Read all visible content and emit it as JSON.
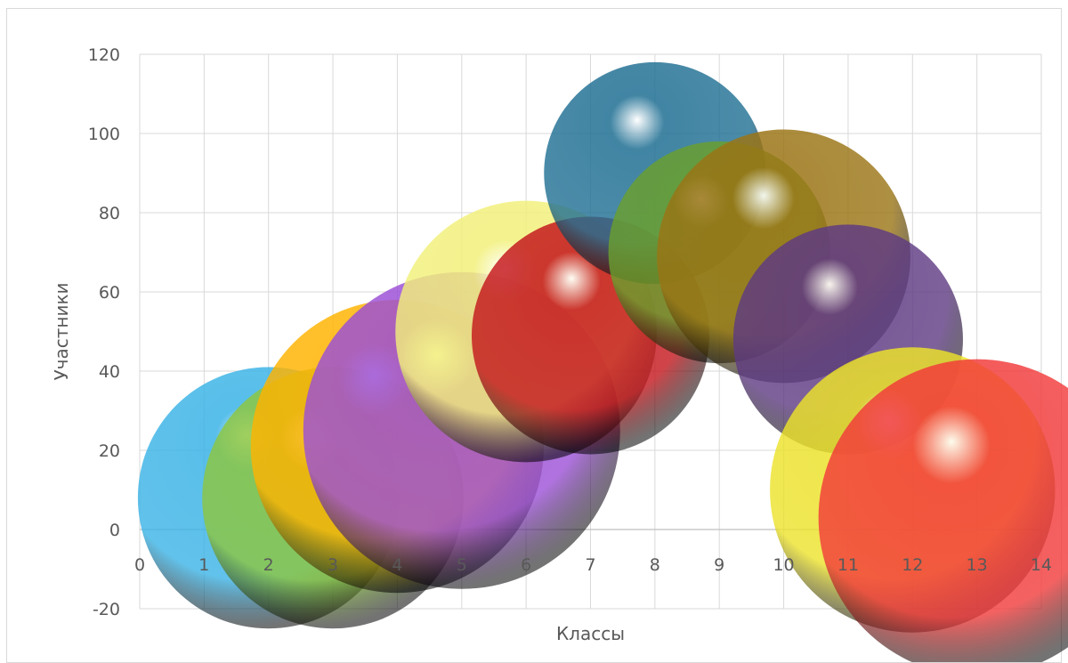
{
  "chart_data": {
    "type": "bubble",
    "title": "",
    "xlabel": "Классы",
    "ylabel": "Участники",
    "xlim": [
      0,
      14
    ],
    "ylim": [
      -20,
      120
    ],
    "xticks": [
      0,
      1,
      2,
      3,
      4,
      5,
      6,
      7,
      8,
      9,
      10,
      11,
      12,
      13,
      14
    ],
    "yticks": [
      -20,
      0,
      20,
      40,
      60,
      80,
      100,
      120
    ],
    "grid": true,
    "points": [
      {
        "x": 2,
        "y": 8,
        "size": 33,
        "color": "#3ab3e6"
      },
      {
        "x": 3,
        "y": 8,
        "size": 33,
        "color": "#8dc63f"
      },
      {
        "x": 4,
        "y": 21,
        "size": 37,
        "color": "#ffb300"
      },
      {
        "x": 5,
        "y": 25,
        "size": 40,
        "color": "#9b4fd6"
      },
      {
        "x": 6,
        "y": 50,
        "size": 33,
        "color": "#f2f07a"
      },
      {
        "x": 7,
        "y": 49,
        "size": 30,
        "color": "#c4161c"
      },
      {
        "x": 8,
        "y": 90,
        "size": 28,
        "color": "#1f6f93"
      },
      {
        "x": 9,
        "y": 70,
        "size": 28,
        "color": "#6a9f2e"
      },
      {
        "x": 10,
        "y": 69,
        "size": 32,
        "color": "#9a7414"
      },
      {
        "x": 11,
        "y": 48,
        "size": 29,
        "color": "#5e3a82"
      },
      {
        "x": 12,
        "y": 10,
        "size": 36,
        "color": "#ece22a"
      },
      {
        "x": 13,
        "y": 3,
        "size": 40,
        "color": "#f23a3a"
      }
    ]
  }
}
